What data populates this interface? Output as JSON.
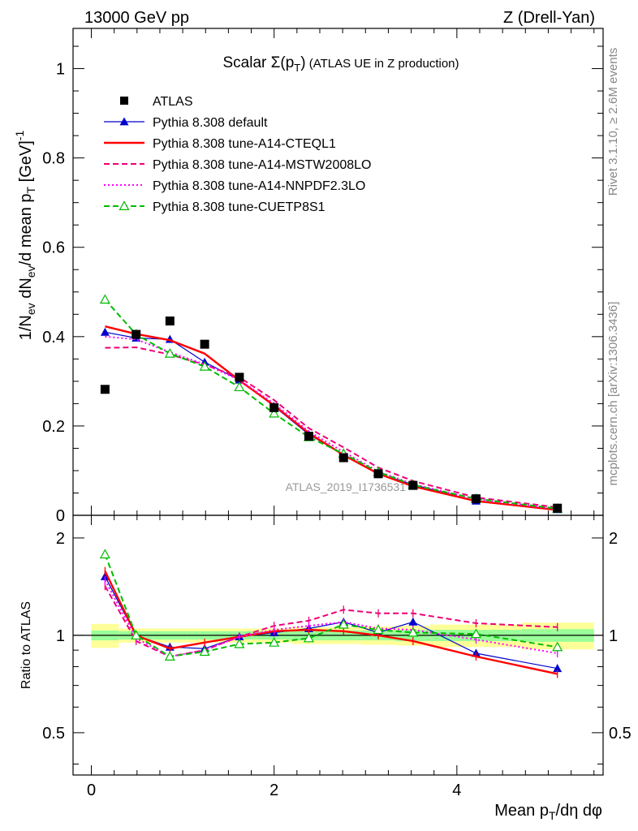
{
  "header": {
    "left": "13000 GeV pp",
    "right": "Z (Drell-Yan)"
  },
  "side_labels": {
    "rivet": "Rivet 3.1.10, ≥ 2.6M events",
    "mcplots": "mcplots.cern.ch [arXiv:1306.3436]"
  },
  "chart_data": {
    "type": "scatter",
    "title": "Scalar Σ(p_T) (ATLAS UE in Z production)",
    "analysis_tag": "ATLAS_2019_I1736531",
    "xlabel": "Mean p_T/dη dφ",
    "ylabel_main": "1/N_ev dN_ev/d mean p_T [GeV]^-1",
    "ylabel_ratio": "Ratio to ATLAS",
    "xlim": [
      -0.2,
      5.6
    ],
    "ylim_main": [
      0,
      1.09
    ],
    "ylim_ratio": [
      0.37,
      2.35
    ],
    "ratio_scale": "log",
    "x_ticks": [
      "0",
      "2",
      "4"
    ],
    "y_ticks_main": [
      "0",
      "0.2",
      "0.4",
      "0.6",
      "0.8",
      "1"
    ],
    "y_ticks_ratio": [
      "0.5",
      "1",
      "2"
    ],
    "legend_position": "top-left",
    "bins": [
      {
        "lo": 0.0,
        "hi": 0.3
      },
      {
        "lo": 0.3,
        "hi": 0.67
      },
      {
        "lo": 0.67,
        "hi": 1.05
      },
      {
        "lo": 1.05,
        "hi": 1.43
      },
      {
        "lo": 1.43,
        "hi": 1.81
      },
      {
        "lo": 1.81,
        "hi": 2.19
      },
      {
        "lo": 2.19,
        "hi": 2.57
      },
      {
        "lo": 2.57,
        "hi": 2.95
      },
      {
        "lo": 2.95,
        "hi": 3.33
      },
      {
        "lo": 3.33,
        "hi": 3.71
      },
      {
        "lo": 3.71,
        "hi": 4.71
      },
      {
        "lo": 4.71,
        "hi": 5.5
      }
    ],
    "x": [
      0.15,
      0.49,
      0.86,
      1.24,
      1.62,
      2.0,
      2.38,
      2.76,
      3.14,
      3.52,
      4.21,
      5.1
    ],
    "data": {
      "name": "ATLAS",
      "values": [
        0.282,
        0.405,
        0.435,
        0.383,
        0.309,
        0.241,
        0.177,
        0.129,
        0.093,
        0.067,
        0.037,
        0.016
      ],
      "band_inner": [
        0.035,
        0.03,
        0.03,
        0.03,
        0.03,
        0.03,
        0.035,
        0.035,
        0.035,
        0.04,
        0.04,
        0.045
      ],
      "band_outer": [
        0.085,
        0.05,
        0.05,
        0.05,
        0.05,
        0.05,
        0.06,
        0.06,
        0.065,
        0.07,
        0.08,
        0.095
      ]
    },
    "series": [
      {
        "name": "Pythia 8.308 default",
        "color": "#0000cc",
        "style": "solid",
        "marker": "triangle-filled",
        "values": [
          0.41,
          0.397,
          0.394,
          0.343,
          0.303,
          0.244,
          0.181,
          0.136,
          0.093,
          0.069,
          0.032,
          0.013
        ],
        "ratio": [
          1.52,
          1.0,
          0.92,
          0.91,
          0.99,
          1.02,
          1.05,
          1.1,
          1.02,
          1.1,
          0.88,
          0.79
        ]
      },
      {
        "name": "Pythia 8.308 tune-A14-CTEQL1",
        "color": "#ff0000",
        "style": "solid",
        "marker": "none",
        "values": [
          0.423,
          0.406,
          0.392,
          0.362,
          0.302,
          0.246,
          0.184,
          0.135,
          0.093,
          0.065,
          0.032,
          0.012
        ],
        "ratio": [
          1.58,
          1.0,
          0.91,
          0.95,
          0.99,
          1.03,
          1.04,
          1.03,
          1.0,
          0.96,
          0.86,
          0.76
        ]
      },
      {
        "name": "Pythia 8.308 tune-A14-MSTW2008LO",
        "color": "#ee0077",
        "style": "dashed",
        "marker": "none",
        "values": [
          0.375,
          0.376,
          0.36,
          0.337,
          0.309,
          0.258,
          0.195,
          0.152,
          0.107,
          0.077,
          0.04,
          0.018
        ],
        "ratio": [
          1.42,
          0.96,
          0.86,
          0.9,
          0.99,
          1.07,
          1.11,
          1.2,
          1.17,
          1.17,
          1.09,
          1.06
        ]
      },
      {
        "name": "Pythia 8.308 tune-A14-NNPDF2.3LO",
        "color": "#ff00ff",
        "style": "dotted",
        "marker": "none",
        "values": [
          0.4,
          0.394,
          0.365,
          0.338,
          0.303,
          0.25,
          0.188,
          0.142,
          0.098,
          0.07,
          0.036,
          0.014
        ],
        "ratio": [
          1.48,
          0.98,
          0.86,
          0.9,
          0.99,
          1.04,
          1.07,
          1.1,
          1.05,
          1.04,
          0.97,
          0.88
        ]
      },
      {
        "name": "Pythia 8.308 tune-CUETP8S1",
        "color": "#00bb00",
        "style": "dashed",
        "marker": "triangle-open",
        "values": [
          0.483,
          0.405,
          0.362,
          0.333,
          0.287,
          0.228,
          0.175,
          0.138,
          0.097,
          0.068,
          0.037,
          0.015
        ],
        "ratio": [
          1.78,
          1.0,
          0.86,
          0.89,
          0.94,
          0.95,
          0.98,
          1.08,
          1.04,
          1.02,
          1.01,
          0.92
        ]
      }
    ]
  }
}
